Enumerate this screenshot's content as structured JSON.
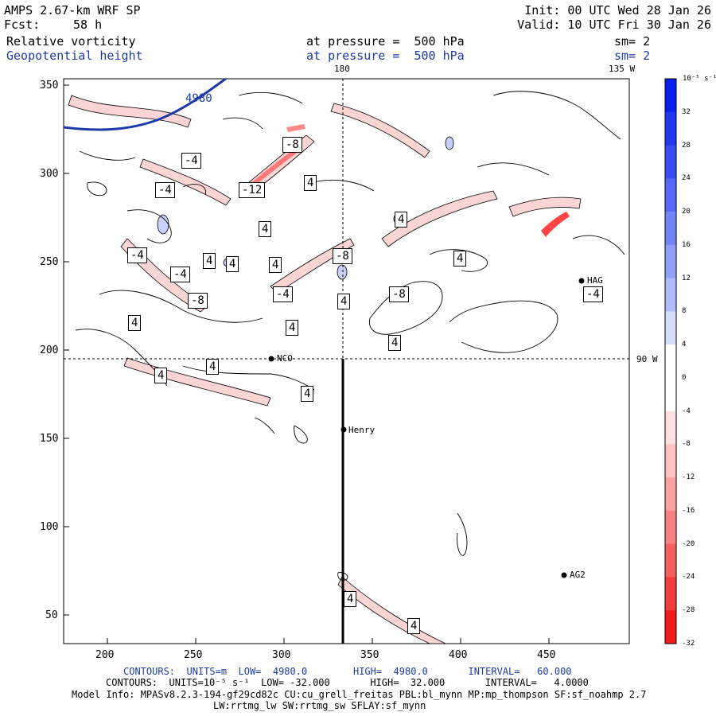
{
  "header": {
    "model": "AMPS 2.67-km WRF SP",
    "forecast_label": "Fcst:",
    "forecast_value": "58 h",
    "init": "Init: 00 UTC Wed 28 Jan 26",
    "valid": "Valid: 10 UTC Fri 30 Jan 26",
    "field1_name": "Relative vorticity",
    "field1_level": "at pressure =  500 hPa",
    "field1_smooth": "sm= 2",
    "field2_name": "Geopotential height",
    "field2_level": "at pressure =  500 hPa",
    "field2_smooth": "sm= 2"
  },
  "map": {
    "top_labels": [
      "180",
      "135 W"
    ],
    "right_label": "90 W",
    "x_ticks": [
      "200",
      "250",
      "300",
      "350",
      "400",
      "450"
    ],
    "y_ticks": [
      "350",
      "300",
      "250",
      "200",
      "150",
      "100",
      "50"
    ],
    "height_contour_label": "4980",
    "vorticity_labels": [
      "-8",
      "-4",
      "-4",
      "4",
      "-12",
      "4",
      "4",
      "4",
      "-4",
      "4",
      "-8",
      "4",
      "-4",
      "4",
      "-8",
      "4",
      "-4",
      "-4",
      "-8",
      "4",
      "4",
      "4",
      "4",
      "4",
      "4",
      "4",
      "4",
      "4",
      "-4",
      "-4",
      "4"
    ],
    "stations": [
      "NCO",
      "Henry",
      "HAG",
      "AG2"
    ],
    "colors": {
      "height_contour": "#1c3aa8",
      "positive_vorticity": "#3050ff",
      "negative_vorticity": "#ff3030"
    }
  },
  "colorbar": {
    "unit": "10⁻⁵ s⁻¹",
    "labels": [
      "32",
      "28",
      "24",
      "20",
      "16",
      "12",
      "8",
      "4",
      "0",
      "-4",
      "-8",
      "-12",
      "-16",
      "-20",
      "-24",
      "-28",
      "-32"
    ],
    "colors": [
      "#0a1ef0",
      "#2136f0",
      "#3a4ff2",
      "#5669f4",
      "#7384f5",
      "#909ff7",
      "#b0bcf9",
      "#d5dcfc",
      "#ffffff",
      "#ffffff",
      "#fde0e0",
      "#fbc0c0",
      "#f9a0a0",
      "#f78080",
      "#f55f5f",
      "#f33e3e",
      "#f01a1a"
    ]
  },
  "footer": {
    "line1": "CONTOURS:  UNITS=m  LOW=  4980.0        HIGH=  4980.0       INTERVAL=   60.000",
    "line2": "CONTOURS:  UNITS=10⁻⁵ s⁻¹  LOW= -32.000       HIGH=  32.000       INTERVAL=   4.0000",
    "line3": "Model Info: MPASv8.2.3-194-gf29cd82c CU:cu_grell_freitas PBL:bl_mynn MP:mp_thompson SF:sf_noahmp 2.7",
    "line4": "LW:rrtmg_lw SW:rrtmg_sw SFLAY:sf_mynn"
  }
}
